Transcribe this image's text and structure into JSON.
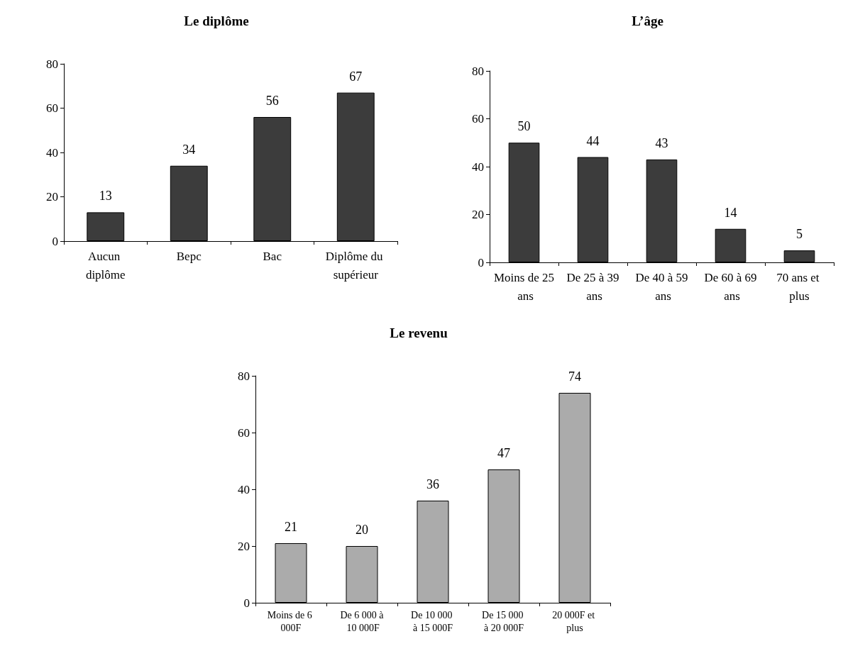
{
  "chart_data": [
    {
      "type": "bar",
      "title": "Le diplôme",
      "categories": [
        "Aucun diplôme",
        "Bepc",
        "Bac",
        "Diplôme du supérieur"
      ],
      "values": [
        13,
        34,
        56,
        67
      ],
      "color": "#3c3c3c",
      "ylim": [
        0,
        80
      ],
      "yticks": [
        0,
        20,
        40,
        60,
        80
      ],
      "data_labels": true,
      "grid": false
    },
    {
      "type": "bar",
      "title": "L’âge",
      "categories": [
        "Moins de 25 ans",
        "De 25 à 39 ans",
        "De 40 à 59 ans",
        "De 60 à 69 ans",
        "70 ans et plus"
      ],
      "values": [
        50,
        44,
        43,
        14,
        5
      ],
      "color": "#3c3c3c",
      "ylim": [
        0,
        80
      ],
      "yticks": [
        0,
        20,
        40,
        60,
        80
      ],
      "data_labels": true,
      "grid": false
    },
    {
      "type": "bar",
      "title": "Le revenu",
      "categories": [
        "Moins de 6 000F",
        "De 6 000 à 10 000F",
        "De 10 000 à 15 000F",
        "De 15 000 à 20 000F",
        "20 000F et plus"
      ],
      "values": [
        21,
        20,
        36,
        47,
        74
      ],
      "color": "#ababab",
      "ylim": [
        0,
        80
      ],
      "yticks": [
        0,
        20,
        40,
        60,
        80
      ],
      "data_labels": true,
      "grid": false
    }
  ]
}
